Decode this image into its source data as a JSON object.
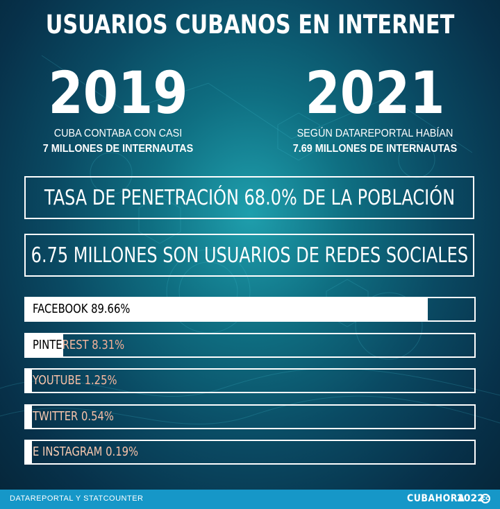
{
  "header": {
    "title": "USUARIOS CUBANOS EN INTERNET"
  },
  "years": [
    {
      "year": "2019",
      "line1": "CUBA CONTABA CON CASI",
      "line2": "7 MILLONES DE INTERNAUTAS"
    },
    {
      "year": "2021",
      "line1": "SEGÚN DATAREPORTAL HABÍAN",
      "line2": "7.69 MILLONES DE INTERNAUTAS"
    }
  ],
  "stats": {
    "penetration": "TASA DE PENETRACIÓN 68.0% DE LA POBLACIÓN",
    "social": "6.75 MILLONES SON USUARIOS DE REDES SOCIALES"
  },
  "chart_data": {
    "type": "bar",
    "orientation": "horizontal",
    "categories": [
      "FACEBOOK",
      "PINTEREST",
      "YOUTUBE",
      "TWITTER",
      "INSTAGRAM"
    ],
    "values": [
      89.66,
      8.31,
      1.25,
      0.54,
      0.19
    ],
    "labels": [
      "FACEBOOK 89.66%",
      "PINTEREST 8.31%",
      "YOUTUBE 1.25%",
      "TWITTER 0.54%",
      "E INSTAGRAM 0.19%"
    ],
    "xlim": [
      0,
      100
    ],
    "bar_color": "#ffffff",
    "title": "",
    "xlabel": "",
    "ylabel": ""
  },
  "footer": {
    "source": "DATAREPORTAL Y STATCOUNTER",
    "brand": "CUBAHORA",
    "year": "2022",
    "license_mark": "CC"
  },
  "colors": {
    "background_dark": "#052538",
    "background_light": "#1f9fad",
    "footer_bar": "#1697c8"
  }
}
